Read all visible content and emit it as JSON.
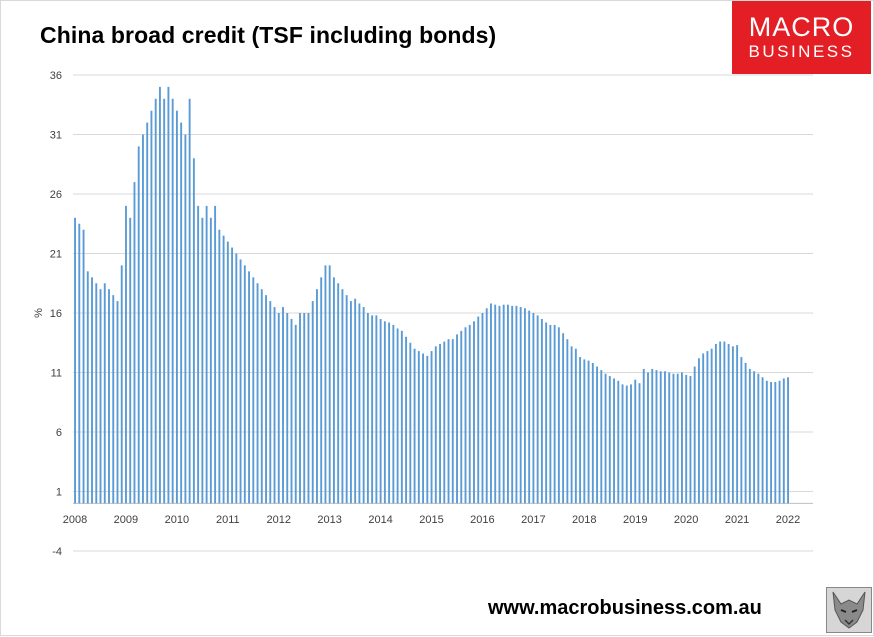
{
  "header": {
    "title": "China broad credit (TSF including bonds)",
    "logo_line1": "MACRO",
    "logo_line2": "BUSINESS",
    "website": "www.macrobusiness.com.au"
  },
  "colors": {
    "bar": "#5b9bd5",
    "grid": "#d9d9d9",
    "logo_bg": "#e31e24"
  },
  "icons": {
    "corner_badge": "wolf-logo-icon"
  },
  "chart_data": {
    "type": "bar",
    "title": "China broad credit (TSF including bonds)",
    "xlabel": "",
    "ylabel": "%",
    "ylim": [
      -4,
      36
    ],
    "yticks": [
      -4,
      1,
      6,
      11,
      16,
      21,
      26,
      31,
      36
    ],
    "xticks": [
      "2008",
      "2009",
      "2010",
      "2011",
      "2012",
      "2013",
      "2014",
      "2015",
      "2016",
      "2017",
      "2018",
      "2019",
      "2020",
      "2021",
      "2022"
    ],
    "grid": true,
    "frequency": "monthly",
    "start": "2008-01",
    "series": [
      {
        "values": [
          24.0,
          23.5,
          23.0,
          19.5,
          19.0,
          18.5,
          18.0,
          18.5,
          18.0,
          17.5,
          17.0,
          20.0,
          25.0,
          24.0,
          27.0,
          30.0,
          31.0,
          32.0,
          33.0,
          34.0,
          35.0,
          34.0,
          35.0,
          34.0,
          33.0,
          32.0,
          31.0,
          34.0,
          29.0,
          25.0,
          24.0,
          25.0,
          24.0,
          25.0,
          23.0,
          22.5,
          22.0,
          21.5,
          21.0,
          20.5,
          20.0,
          19.5,
          19.0,
          18.5,
          18.0,
          17.5,
          17.0,
          16.5,
          16.0,
          16.5,
          16.0,
          15.5,
          15.0,
          16.0,
          16.0,
          16.0,
          17.0,
          18.0,
          19.0,
          20.0,
          20.0,
          19.0,
          18.5,
          18.0,
          17.5,
          17.0,
          17.2,
          16.8,
          16.5,
          16.0,
          15.8,
          15.8,
          15.5,
          15.3,
          15.2,
          15.0,
          14.7,
          14.5,
          14.0,
          13.5,
          13.0,
          12.8,
          12.6,
          12.4,
          12.8,
          13.2,
          13.4,
          13.6,
          13.8,
          13.8,
          14.2,
          14.5,
          14.8,
          15.0,
          15.3,
          15.7,
          16.0,
          16.4,
          16.8,
          16.7,
          16.6,
          16.7,
          16.7,
          16.6,
          16.6,
          16.5,
          16.4,
          16.2,
          16.0,
          15.8,
          15.5,
          15.2,
          15.0,
          15.0,
          14.8,
          14.3,
          13.8,
          13.2,
          13.0,
          12.3,
          12.1,
          12.0,
          11.8,
          11.5,
          11.2,
          10.9,
          10.7,
          10.5,
          10.3,
          10.0,
          9.9,
          10.0,
          10.4,
          10.1,
          11.3,
          11.0,
          11.3,
          11.2,
          11.1,
          11.1,
          11.0,
          10.9,
          10.9,
          11.0,
          10.8,
          10.7,
          11.5,
          12.2,
          12.6,
          12.8,
          13.0,
          13.4,
          13.6,
          13.6,
          13.4,
          13.2,
          13.3,
          12.3,
          11.8,
          11.3,
          11.1,
          10.9,
          10.6,
          10.3,
          10.2,
          10.2,
          10.3,
          10.5,
          10.6
        ]
      }
    ]
  }
}
